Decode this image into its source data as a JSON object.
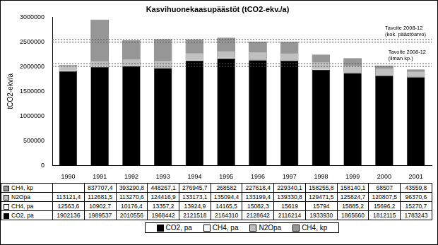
{
  "chart_data": {
    "type": "bar",
    "title": "Kasvihuonekaasupäästöt (tCO2-ekv./a)",
    "y_label": "tCO2-ekv/a",
    "categories": [
      "1990",
      "1991",
      "1992",
      "1993",
      "1994",
      "1995",
      "1996",
      "1997",
      "1998",
      "1999",
      "2000",
      "2001"
    ],
    "stacked": true,
    "grid": false,
    "legend": "bottom",
    "ylim": [
      0,
      3000000
    ],
    "yticks": [
      0,
      500000,
      1000000,
      1500000,
      2000000,
      2500000,
      3000000
    ],
    "series": [
      {
        "name": "CO2, pa",
        "color": "#000000",
        "values": [
          1902136,
          1989537,
          2010556,
          1968442,
          2121518,
          2164310,
          2128642,
          2116214,
          1933930,
          1865660,
          1812115,
          1783243
        ],
        "value_labels": [
          "1902136",
          "1989537",
          "2010556",
          "1968442",
          "2121518",
          "2164310",
          "2128642",
          "2116214",
          "1933930",
          "1865660",
          "1812115",
          "1783243"
        ]
      },
      {
        "name": "CH4, pa",
        "color": "#ffffff",
        "values": [
          12563.6,
          10902.7,
          10176.4,
          13357.2,
          13924.9,
          14165.5,
          15082.3,
          15619,
          15794,
          15885.2,
          15696.2,
          15270.7
        ],
        "value_labels": [
          "12563,6",
          "10902,7",
          "10176,4",
          "13357,2",
          "13924,9",
          "14165,5",
          "15082,3",
          "15619",
          "15794",
          "15885,2",
          "15696,2",
          "15270,7"
        ]
      },
      {
        "name": "N2Opa",
        "color": "#c0c0c0",
        "values": [
          113121.4,
          112681.5,
          113270.6,
          124416.9,
          133173.1,
          135094.4,
          133199.4,
          139330.8,
          129471.5,
          125824.7,
          120807.5,
          96370.6
        ],
        "value_labels": [
          "113121,4",
          "112681,5",
          "113270,6",
          "124416,9",
          "133173,1",
          "135094,4",
          "133199,4",
          "139330,8",
          "129471,5",
          "125824,7",
          "120807,5",
          "96370,6"
        ]
      },
      {
        "name": "CH4, kp",
        "color": "#969696",
        "values": [
          null,
          837707.4,
          393290.8,
          448267.1,
          276945.7,
          268582,
          227618.4,
          229340.1,
          158255.8,
          158140.1,
          68507,
          43559.8
        ],
        "value_labels": [
          null,
          "837707,4",
          "393290,8",
          "448267,1",
          "276945,7",
          "268582",
          "227618,4",
          "229340,1",
          "158255,8",
          "158140,1",
          "68507",
          "43559,8"
        ]
      }
    ],
    "annotations": [
      {
        "label": [
          "Tavoite 2008-12",
          "(kok. päästöarvo)"
        ],
        "y": 2520000
      },
      {
        "label": [
          "Tavoite 2008-12",
          "(ilman kp.)"
        ],
        "y": 2030000
      }
    ]
  }
}
